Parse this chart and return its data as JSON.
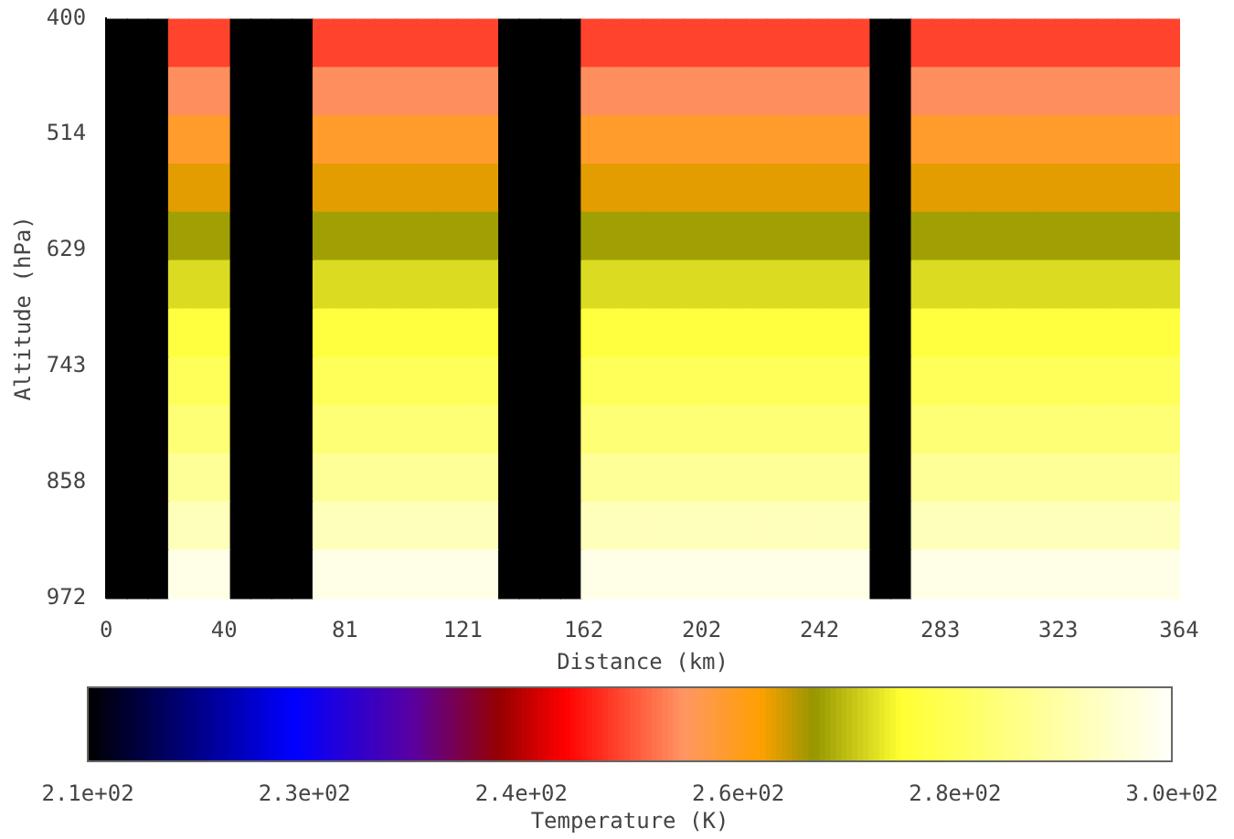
{
  "chart_data": {
    "type": "heatmap",
    "xlabel": "Distance (km)",
    "ylabel": "Altitude (hPa)",
    "clabel": "Temperature (K)",
    "x": [
      3.5,
      10.5,
      17.5,
      24.5,
      31.5,
      38.5,
      45.5,
      52.5,
      59.5,
      66.5,
      73.5,
      80.5,
      87.5,
      94.5,
      101.5,
      108.5,
      115.5,
      122.5,
      129.5,
      136.5,
      143.5,
      150.5,
      157.5,
      164.5,
      171.5,
      178.5,
      185.5,
      192.5,
      199.5,
      206.5,
      213.5,
      220.5,
      227.5,
      234.5,
      241.5,
      248.5,
      255.5,
      262.5,
      269.5,
      276.5,
      283.5,
      290.5,
      297.5,
      304.5,
      311.5,
      318.5,
      325.5,
      332.5,
      339.5,
      346.5,
      353.5,
      360.5
    ],
    "xlim": [
      0,
      364
    ],
    "xticks": [
      0,
      40,
      81,
      121,
      162,
      202,
      242,
      283,
      323,
      364
    ],
    "ylim": [
      972,
      400
    ],
    "yticks": [
      400,
      514,
      629,
      743,
      858,
      972
    ],
    "clim": [
      207,
      297
    ],
    "cticks": [
      {
        "value": 207,
        "label": "2.1e+02"
      },
      {
        "value": 225,
        "label": "2.3e+02"
      },
      {
        "value": 243,
        "label": "2.4e+02"
      },
      {
        "value": 261,
        "label": "2.6e+02"
      },
      {
        "value": 279,
        "label": "2.8e+02"
      },
      {
        "value": 297,
        "label": "3.0e+02"
      }
    ],
    "cells": [
      [
        207,
        207,
        207,
        251,
        251,
        251,
        207,
        207,
        207,
        207,
        251,
        251,
        251,
        251,
        251,
        251,
        251,
        251,
        251,
        207,
        207,
        207,
        207,
        251,
        251,
        251,
        251,
        251,
        251,
        251,
        251,
        251,
        251,
        251,
        251,
        251,
        251,
        207,
        207,
        251,
        251,
        251,
        251,
        251,
        251,
        251,
        251,
        251,
        251,
        251,
        251,
        251
      ],
      [
        207,
        207,
        207,
        256,
        256,
        256,
        207,
        207,
        207,
        207,
        256,
        256,
        256,
        256,
        256,
        256,
        256,
        256,
        256,
        207,
        207,
        207,
        207,
        256,
        256,
        256,
        256,
        256,
        256,
        256,
        256,
        256,
        256,
        256,
        256,
        256,
        256,
        207,
        207,
        256,
        256,
        256,
        256,
        256,
        256,
        256,
        256,
        256,
        256,
        256,
        256,
        256
      ],
      [
        207,
        207,
        207,
        260,
        260,
        260,
        207,
        207,
        207,
        207,
        260,
        260,
        260,
        260,
        260,
        260,
        260,
        260,
        260,
        207,
        207,
        207,
        207,
        260,
        260,
        260,
        260,
        260,
        260,
        260,
        260,
        260,
        260,
        260,
        260,
        260,
        260,
        207,
        207,
        260,
        260,
        260,
        260,
        260,
        260,
        260,
        260,
        260,
        260,
        260,
        260,
        260
      ],
      [
        207,
        207,
        207,
        264,
        264,
        264,
        207,
        207,
        207,
        207,
        264,
        264,
        264,
        264,
        264,
        264,
        264,
        264,
        264,
        207,
        207,
        207,
        207,
        264,
        264,
        264,
        264,
        264,
        264,
        264,
        264,
        264,
        264,
        264,
        264,
        264,
        264,
        207,
        207,
        264,
        264,
        264,
        264,
        264,
        264,
        264,
        264,
        264,
        264,
        264,
        264,
        264
      ],
      [
        207,
        207,
        207,
        268,
        268,
        268,
        207,
        207,
        207,
        207,
        268,
        268,
        268,
        268,
        268,
        268,
        268,
        268,
        268,
        207,
        207,
        207,
        207,
        268,
        268,
        268,
        268,
        268,
        268,
        268,
        268,
        268,
        268,
        268,
        268,
        268,
        268,
        207,
        207,
        268,
        268,
        268,
        268,
        268,
        268,
        268,
        268,
        268,
        268,
        268,
        268,
        268
      ],
      [
        207,
        207,
        207,
        272,
        272,
        272,
        207,
        207,
        207,
        207,
        272,
        272,
        272,
        272,
        272,
        272,
        272,
        272,
        272,
        207,
        207,
        207,
        207,
        272,
        272,
        272,
        272,
        272,
        272,
        272,
        272,
        272,
        272,
        272,
        272,
        272,
        272,
        207,
        207,
        272,
        272,
        272,
        272,
        272,
        272,
        272,
        272,
        272,
        272,
        272,
        272,
        272
      ],
      [
        207,
        207,
        207,
        276,
        276,
        276,
        207,
        207,
        207,
        207,
        276,
        276,
        276,
        276,
        276,
        276,
        276,
        276,
        276,
        207,
        207,
        207,
        207,
        276,
        276,
        276,
        276,
        276,
        276,
        276,
        276,
        276,
        276,
        276,
        276,
        276,
        276,
        207,
        207,
        276,
        276,
        276,
        276,
        276,
        276,
        276,
        276,
        276,
        276,
        276,
        276,
        276
      ],
      [
        207,
        207,
        207,
        279,
        279,
        279,
        207,
        207,
        207,
        207,
        279,
        279,
        279,
        279,
        279,
        279,
        279,
        279,
        279,
        207,
        207,
        207,
        207,
        279,
        279,
        279,
        279,
        279,
        279,
        279,
        279,
        279,
        279,
        279,
        279,
        279,
        279,
        207,
        207,
        279,
        279,
        279,
        279,
        279,
        279,
        279,
        279,
        279,
        279,
        279,
        279,
        279
      ],
      [
        207,
        207,
        207,
        282,
        282,
        282,
        207,
        207,
        207,
        207,
        282,
        282,
        282,
        282,
        282,
        282,
        282,
        282,
        282,
        207,
        207,
        207,
        207,
        282,
        282,
        282,
        282,
        282,
        282,
        282,
        282,
        282,
        282,
        282,
        282,
        282,
        282,
        207,
        207,
        282,
        282,
        282,
        282,
        282,
        282,
        282,
        282,
        282,
        282,
        282,
        282,
        282
      ],
      [
        207,
        207,
        207,
        286,
        286,
        286,
        207,
        207,
        207,
        207,
        286,
        286,
        286,
        286,
        286,
        286,
        286,
        286,
        286,
        207,
        207,
        207,
        207,
        286,
        286,
        286,
        286,
        286,
        286,
        286,
        286,
        286,
        286,
        286,
        286,
        286,
        286,
        207,
        207,
        286,
        286,
        286,
        286,
        286,
        286,
        286,
        286,
        286,
        286,
        286,
        286,
        286
      ],
      [
        207,
        207,
        207,
        290,
        290,
        290,
        207,
        207,
        207,
        207,
        290,
        290,
        290,
        290,
        290,
        290,
        290,
        290,
        290,
        207,
        207,
        207,
        207,
        290,
        290,
        290,
        290,
        290,
        290,
        290,
        290,
        290,
        290,
        290,
        290,
        290,
        290,
        207,
        207,
        290,
        290,
        290,
        290,
        290,
        290,
        290,
        290,
        290,
        290,
        290,
        290,
        290
      ],
      [
        207,
        207,
        207,
        295,
        295,
        295,
        207,
        207,
        207,
        207,
        295,
        295,
        295,
        295,
        295,
        295,
        295,
        295,
        295,
        207,
        207,
        207,
        207,
        295,
        295,
        295,
        295,
        295,
        295,
        295,
        295,
        295,
        295,
        295,
        295,
        295,
        295,
        207,
        207,
        295,
        295,
        295,
        295,
        295,
        295,
        295,
        295,
        295,
        295,
        295,
        295,
        295
      ]
    ]
  }
}
